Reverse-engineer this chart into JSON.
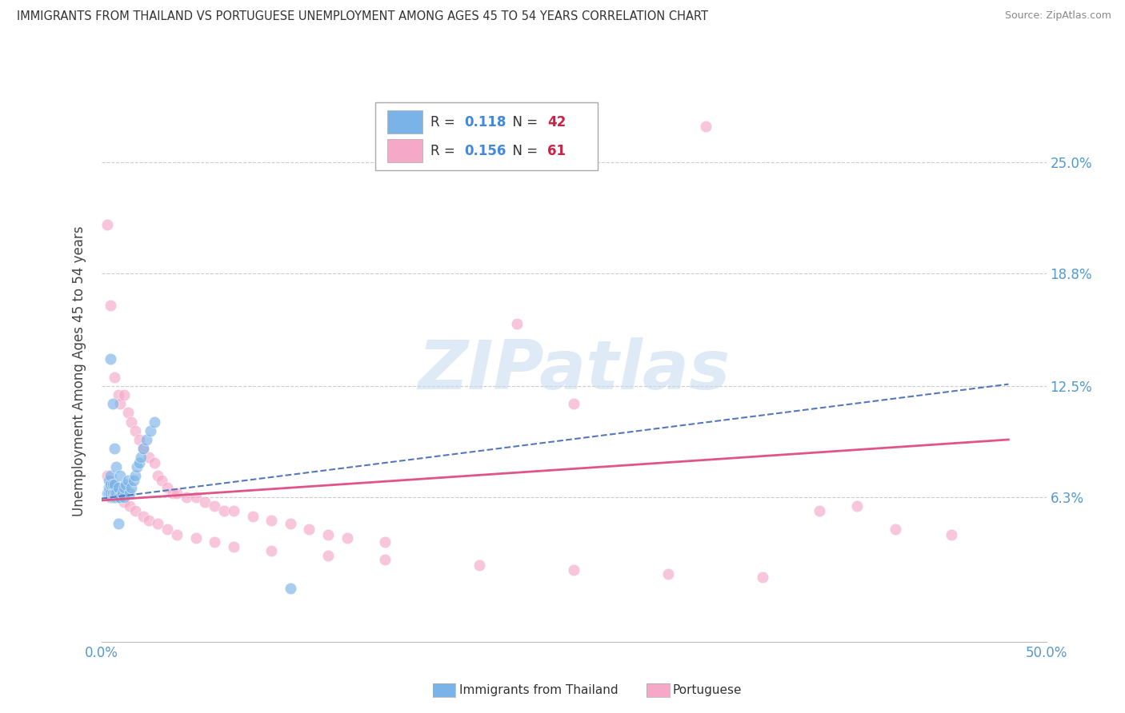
{
  "title": "IMMIGRANTS FROM THAILAND VS PORTUGUESE UNEMPLOYMENT AMONG AGES 45 TO 54 YEARS CORRELATION CHART",
  "source": "Source: ZipAtlas.com",
  "ylabel": "Unemployment Among Ages 45 to 54 years",
  "xlim": [
    0.0,
    0.5
  ],
  "ylim": [
    -0.018,
    0.285
  ],
  "yticks": [
    0.063,
    0.125,
    0.188,
    0.25
  ],
  "ytick_labels": [
    "6.3%",
    "12.5%",
    "18.8%",
    "25.0%"
  ],
  "xtick_labels": [
    "0.0%",
    "50.0%"
  ],
  "blue_scatter_x": [
    0.003,
    0.004,
    0.004,
    0.004,
    0.005,
    0.005,
    0.005,
    0.005,
    0.005,
    0.006,
    0.006,
    0.006,
    0.006,
    0.007,
    0.007,
    0.007,
    0.007,
    0.008,
    0.008,
    0.008,
    0.009,
    0.009,
    0.01,
    0.01,
    0.011,
    0.012,
    0.012,
    0.013,
    0.014,
    0.015,
    0.016,
    0.017,
    0.018,
    0.019,
    0.02,
    0.021,
    0.022,
    0.024,
    0.026,
    0.028,
    0.1,
    0.009
  ],
  "blue_scatter_y": [
    0.065,
    0.065,
    0.068,
    0.072,
    0.063,
    0.065,
    0.07,
    0.075,
    0.14,
    0.063,
    0.065,
    0.07,
    0.115,
    0.063,
    0.065,
    0.07,
    0.09,
    0.063,
    0.065,
    0.08,
    0.063,
    0.068,
    0.063,
    0.075,
    0.065,
    0.063,
    0.068,
    0.07,
    0.072,
    0.065,
    0.068,
    0.072,
    0.075,
    0.08,
    0.082,
    0.085,
    0.09,
    0.095,
    0.1,
    0.105,
    0.012,
    0.048
  ],
  "pink_scatter_x": [
    0.003,
    0.005,
    0.007,
    0.009,
    0.01,
    0.012,
    0.014,
    0.016,
    0.018,
    0.02,
    0.022,
    0.025,
    0.028,
    0.03,
    0.032,
    0.035,
    0.038,
    0.04,
    0.045,
    0.05,
    0.055,
    0.06,
    0.065,
    0.07,
    0.08,
    0.09,
    0.1,
    0.11,
    0.12,
    0.13,
    0.15,
    0.003,
    0.005,
    0.007,
    0.009,
    0.01,
    0.012,
    0.015,
    0.018,
    0.022,
    0.025,
    0.03,
    0.035,
    0.04,
    0.05,
    0.06,
    0.07,
    0.09,
    0.12,
    0.15,
    0.2,
    0.25,
    0.3,
    0.35,
    0.38,
    0.4,
    0.42,
    0.45,
    0.25,
    0.32,
    0.22
  ],
  "pink_scatter_y": [
    0.215,
    0.17,
    0.13,
    0.12,
    0.115,
    0.12,
    0.11,
    0.105,
    0.1,
    0.095,
    0.09,
    0.085,
    0.082,
    0.075,
    0.072,
    0.068,
    0.065,
    0.065,
    0.063,
    0.063,
    0.06,
    0.058,
    0.055,
    0.055,
    0.052,
    0.05,
    0.048,
    0.045,
    0.042,
    0.04,
    0.038,
    0.075,
    0.072,
    0.068,
    0.065,
    0.063,
    0.06,
    0.058,
    0.055,
    0.052,
    0.05,
    0.048,
    0.045,
    0.042,
    0.04,
    0.038,
    0.035,
    0.033,
    0.03,
    0.028,
    0.025,
    0.022,
    0.02,
    0.018,
    0.055,
    0.058,
    0.045,
    0.042,
    0.115,
    0.27,
    0.16
  ],
  "blue_line_x": [
    0.0,
    0.48
  ],
  "blue_line_y": [
    0.062,
    0.126
  ],
  "pink_line_x": [
    0.0,
    0.48
  ],
  "pink_line_y": [
    0.061,
    0.095
  ],
  "blue_color": "#7ab3e8",
  "pink_color": "#f5a8c8",
  "blue_line_color": "#5577bb",
  "pink_line_color": "#e05588",
  "legend_r1": "0.118",
  "legend_n1": "42",
  "legend_r2": "0.156",
  "legend_n2": "61",
  "legend_val_color": "#4488dd",
  "legend_count_color": "#cc2244",
  "watermark_text": "ZIPatlas",
  "watermark_color": "#c8ddf0",
  "background_color": "#ffffff",
  "grid_color": "#cccccc",
  "grid_linestyle": "--"
}
